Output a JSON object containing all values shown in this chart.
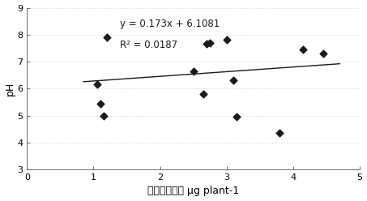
{
  "scatter_x": [
    1.05,
    1.1,
    1.15,
    1.2,
    2.5,
    2.65,
    2.7,
    2.75,
    3.0,
    3.1,
    3.15,
    3.8,
    4.15,
    4.45
  ],
  "scatter_y": [
    6.15,
    5.45,
    5.0,
    7.9,
    6.65,
    5.8,
    7.65,
    7.7,
    7.8,
    6.3,
    4.95,
    4.35,
    7.45,
    7.3
  ],
  "equation": "y = 0.173x + 6.1081",
  "r2_text": "R² = 0.0187",
  "slope": 0.173,
  "intercept": 6.1081,
  "xlabel_chinese": "氨基酸吸收量",
  "xlabel_latin": " μg plant",
  "xlabel_super": "-1",
  "ylabel": "pH",
  "xlim": [
    0,
    5
  ],
  "ylim": [
    3,
    9
  ],
  "xticks": [
    0,
    1,
    2,
    3,
    4,
    5
  ],
  "yticks": [
    3,
    4,
    5,
    6,
    7,
    8,
    9
  ],
  "line_x_start": 0.85,
  "line_x_end": 4.7,
  "marker_color": "#1a1a1a",
  "line_color": "#1a1a1a",
  "background_color": "#ffffff",
  "grid_color": "#cccccc",
  "equation_fontsize": 8.5,
  "axis_fontsize": 9,
  "tick_fontsize": 8
}
